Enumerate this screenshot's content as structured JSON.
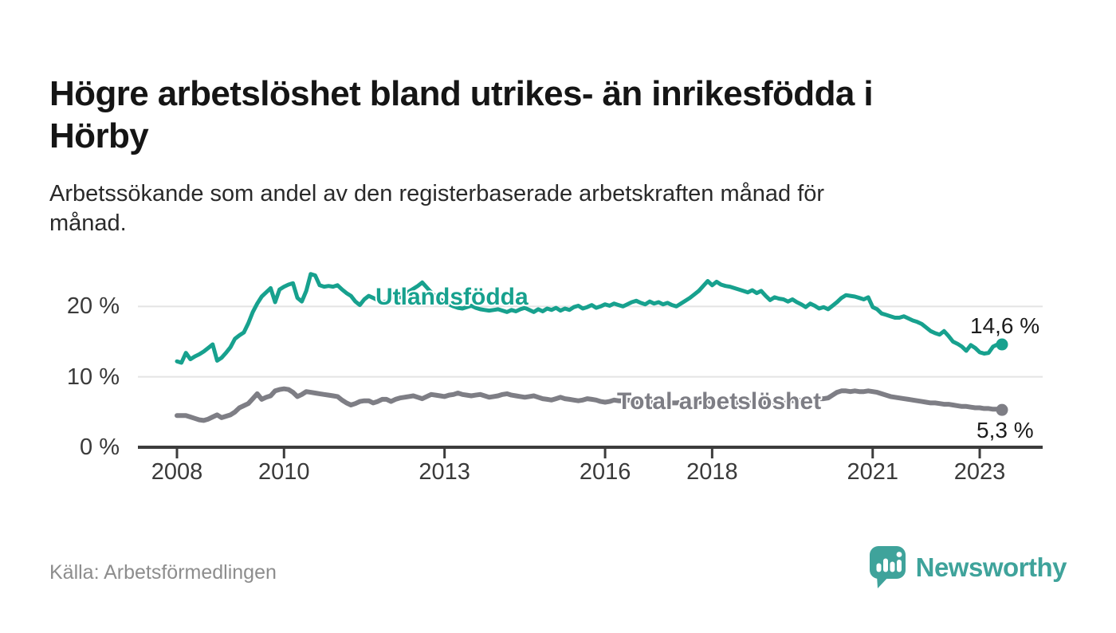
{
  "title": {
    "line1": "Högre arbetslöshet bland utrikes- än inrikesfödda i",
    "line2": "Hörby"
  },
  "subtitle": {
    "line1": "Arbetssökande som andel av den registerbaserade arbetskraften månad för",
    "line2": "månad."
  },
  "source_note": "Källa: Arbetsförmedlingen",
  "branding": {
    "name": "Newsworthy",
    "logo_icon": "speech-bubble-bar-chart-icon",
    "color": "#3fa39b"
  },
  "chart_data": {
    "type": "line",
    "title": "Arbetssökande som andel av den registerbaserade arbetskraften månad för månad",
    "x_unit": "month",
    "x_range": [
      "2008-01",
      "2023-06"
    ],
    "ylim": [
      0,
      26
    ],
    "grid": "horizontal",
    "legend_position": "inline-labels",
    "colors": {
      "axis": "#3c3c3c",
      "gridline": "#e4e4e4"
    },
    "y_ticks": [
      {
        "value": 0,
        "label": "0 %"
      },
      {
        "value": 10,
        "label": "10 %"
      },
      {
        "value": 20,
        "label": "20 %"
      }
    ],
    "x_ticks": [
      {
        "year": 2008,
        "label": "2008"
      },
      {
        "year": 2010,
        "label": "2010"
      },
      {
        "year": 2013,
        "label": "2013"
      },
      {
        "year": 2016,
        "label": "2016"
      },
      {
        "year": 2018,
        "label": "2018"
      },
      {
        "year": 2021,
        "label": "2021"
      },
      {
        "year": 2023,
        "label": "2023"
      }
    ],
    "series": [
      {
        "name": "Utlandsfödda",
        "color": "#17a18e",
        "end_value": 14.6,
        "end_label": "14,6 %",
        "values": [
          12.2,
          12.0,
          13.4,
          12.5,
          12.9,
          13.2,
          13.6,
          14.1,
          14.6,
          12.3,
          12.7,
          13.4,
          14.2,
          15.4,
          15.9,
          16.3,
          17.6,
          19.2,
          20.4,
          21.4,
          22.0,
          22.6,
          20.6,
          22.4,
          22.8,
          23.1,
          23.3,
          21.2,
          20.7,
          22.2,
          24.6,
          24.4,
          23.0,
          22.8,
          22.9,
          22.8,
          23.0,
          22.4,
          21.9,
          21.5,
          20.7,
          20.2,
          21.0,
          21.5,
          21.2,
          20.9,
          20.6,
          20.7,
          21.2,
          21.5,
          21.3,
          21.7,
          22.1,
          22.5,
          22.9,
          23.4,
          22.7,
          22.0,
          21.4,
          21.0,
          20.6,
          20.3,
          20.0,
          19.8,
          19.7,
          19.9,
          20.1,
          19.8,
          19.6,
          19.5,
          19.4,
          19.5,
          19.6,
          19.4,
          19.2,
          19.5,
          19.3,
          19.6,
          19.8,
          19.5,
          19.2,
          19.6,
          19.3,
          19.7,
          19.5,
          19.8,
          19.4,
          19.7,
          19.5,
          19.9,
          20.1,
          19.7,
          19.9,
          20.2,
          19.8,
          20.0,
          20.3,
          20.1,
          20.4,
          20.2,
          20.0,
          20.3,
          20.6,
          20.8,
          20.5,
          20.3,
          20.7,
          20.4,
          20.6,
          20.3,
          20.5,
          20.2,
          20.0,
          20.4,
          20.8,
          21.2,
          21.7,
          22.2,
          22.9,
          23.6,
          23.0,
          23.5,
          23.1,
          22.9,
          22.8,
          22.6,
          22.4,
          22.2,
          22.0,
          22.3,
          21.9,
          22.2,
          21.5,
          20.9,
          21.3,
          21.1,
          21.0,
          20.7,
          21.0,
          20.6,
          20.3,
          19.9,
          20.4,
          20.1,
          19.7,
          19.9,
          19.6,
          20.1,
          20.6,
          21.2,
          21.6,
          21.5,
          21.4,
          21.2,
          21.0,
          21.3,
          19.9,
          19.6,
          19.0,
          18.8,
          18.6,
          18.4,
          18.4,
          18.6,
          18.3,
          18.0,
          17.8,
          17.5,
          17.0,
          16.5,
          16.2,
          16.0,
          16.5,
          15.8,
          15.0,
          14.7,
          14.3,
          13.7,
          14.5,
          14.1,
          13.5,
          13.3,
          13.4,
          14.3,
          14.6,
          14.6
        ]
      },
      {
        "name": "Total arbetslöshet",
        "color": "#7e7e85",
        "end_value": 5.3,
        "end_label": "5,3 %",
        "values": [
          4.5,
          4.5,
          4.5,
          4.3,
          4.1,
          3.9,
          3.8,
          4.0,
          4.3,
          4.6,
          4.2,
          4.4,
          4.6,
          5.0,
          5.6,
          5.9,
          6.2,
          6.9,
          7.6,
          6.8,
          7.1,
          7.3,
          8.0,
          8.2,
          8.3,
          8.2,
          7.8,
          7.2,
          7.5,
          7.9,
          7.8,
          7.7,
          7.6,
          7.5,
          7.4,
          7.3,
          7.2,
          6.7,
          6.3,
          6.0,
          6.2,
          6.5,
          6.6,
          6.6,
          6.3,
          6.5,
          6.8,
          6.8,
          6.5,
          6.8,
          7.0,
          7.1,
          7.2,
          7.3,
          7.1,
          6.9,
          7.2,
          7.5,
          7.4,
          7.3,
          7.2,
          7.4,
          7.5,
          7.7,
          7.5,
          7.4,
          7.3,
          7.4,
          7.5,
          7.3,
          7.1,
          7.2,
          7.3,
          7.5,
          7.6,
          7.4,
          7.3,
          7.2,
          7.1,
          7.2,
          7.3,
          7.1,
          6.9,
          6.8,
          6.7,
          6.9,
          7.1,
          6.9,
          6.8,
          6.7,
          6.6,
          6.7,
          6.9,
          6.8,
          6.7,
          6.5,
          6.4,
          6.5,
          6.7,
          6.6,
          6.6,
          6.7,
          6.6,
          6.4,
          6.5,
          6.6,
          6.5,
          6.4,
          6.4,
          6.5,
          6.4,
          6.3,
          6.3,
          6.4,
          6.5,
          6.4,
          6.3,
          6.4,
          6.5,
          6.6,
          6.5,
          6.4,
          6.3,
          6.2,
          6.3,
          6.4,
          6.3,
          6.2,
          6.3,
          6.4,
          6.3,
          6.4,
          6.3,
          6.3,
          6.4,
          6.4,
          6.5,
          6.5,
          6.6,
          6.6,
          6.7,
          6.7,
          6.8,
          6.8,
          6.9,
          6.9,
          7.0,
          7.4,
          7.8,
          8.0,
          8.0,
          7.9,
          8.0,
          7.9,
          7.9,
          8.0,
          7.9,
          7.8,
          7.6,
          7.4,
          7.2,
          7.1,
          7.0,
          6.9,
          6.8,
          6.7,
          6.6,
          6.5,
          6.4,
          6.3,
          6.3,
          6.2,
          6.1,
          6.1,
          6.0,
          5.9,
          5.8,
          5.8,
          5.7,
          5.6,
          5.6,
          5.5,
          5.5,
          5.4,
          5.4,
          5.3
        ]
      }
    ]
  }
}
